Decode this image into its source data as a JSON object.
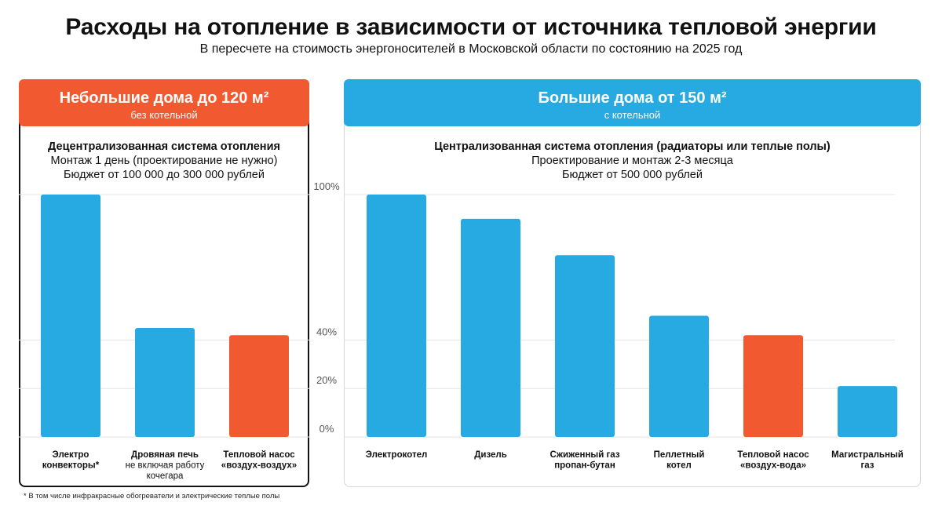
{
  "title": "Расходы на отопление в зависимости от источника тепловой энергии",
  "subtitle": "В пересчете на стоимость энергоносителей в Московской области по состоянию на 2025 год",
  "left_panel": {
    "title": "Небольшие дома до 120 м²",
    "subtitle": "без котельной",
    "system_title": "Децентрализованная система отопления",
    "line1": "Монтаж 1 день (проектирование не нужно)",
    "line2": "Бюджет от 100 000 до 300 000 рублей"
  },
  "right_panel": {
    "title": "Большие дома от 150 м²",
    "subtitle": "с котельной",
    "system_title": "Централизованная система отопления (радиаторы или теплые полы)",
    "line1": "Проектирование и монтаж 2-3 месяца",
    "line2": "Бюджет от 500 000 рублей"
  },
  "footnote": "* В том числе инфракрасные обогреватели и электрические теплые полы",
  "colors": {
    "blue": "#27a9e1",
    "orange": "#f15a31",
    "grid": "#e3e3e3",
    "axis_text": "#555555"
  },
  "chart_data": [
    {
      "type": "bar",
      "title": "Небольшие дома до 120 м²",
      "ylim": [
        0,
        100
      ],
      "unit": "%",
      "categories": [
        {
          "name": "Электро\nконвекторы*",
          "bold_lines": 2,
          "value": 100,
          "highlight": false
        },
        {
          "name": "Дровяная печь\nне включая работу\nкочегара",
          "bold_lines": 1,
          "value": 45,
          "highlight": false
        },
        {
          "name": "Тепловой насос\n«воздух-воздух»",
          "bold_lines": 2,
          "value": 42,
          "highlight": true
        }
      ]
    },
    {
      "type": "bar",
      "title": "Большие дома от 150 м²",
      "ylim": [
        0,
        100
      ],
      "unit": "%",
      "yticks": [
        "0%",
        "20%",
        "40%",
        "100%"
      ],
      "categories": [
        {
          "name": "Электрокотел",
          "bold_lines": 1,
          "value": 100,
          "highlight": false
        },
        {
          "name": "Дизель",
          "bold_lines": 1,
          "value": 90,
          "highlight": false
        },
        {
          "name": "Сжиженный газ\nпропан-бутан",
          "bold_lines": 2,
          "value": 75,
          "highlight": false
        },
        {
          "name": "Пеллетный\nкотел",
          "bold_lines": 2,
          "value": 50,
          "highlight": false
        },
        {
          "name": "Тепловой насос\n«воздух-вода»",
          "bold_lines": 2,
          "value": 42,
          "highlight": true
        },
        {
          "name": "Магистральный\nгаз",
          "bold_lines": 2,
          "value": 21,
          "highlight": false
        }
      ]
    }
  ]
}
